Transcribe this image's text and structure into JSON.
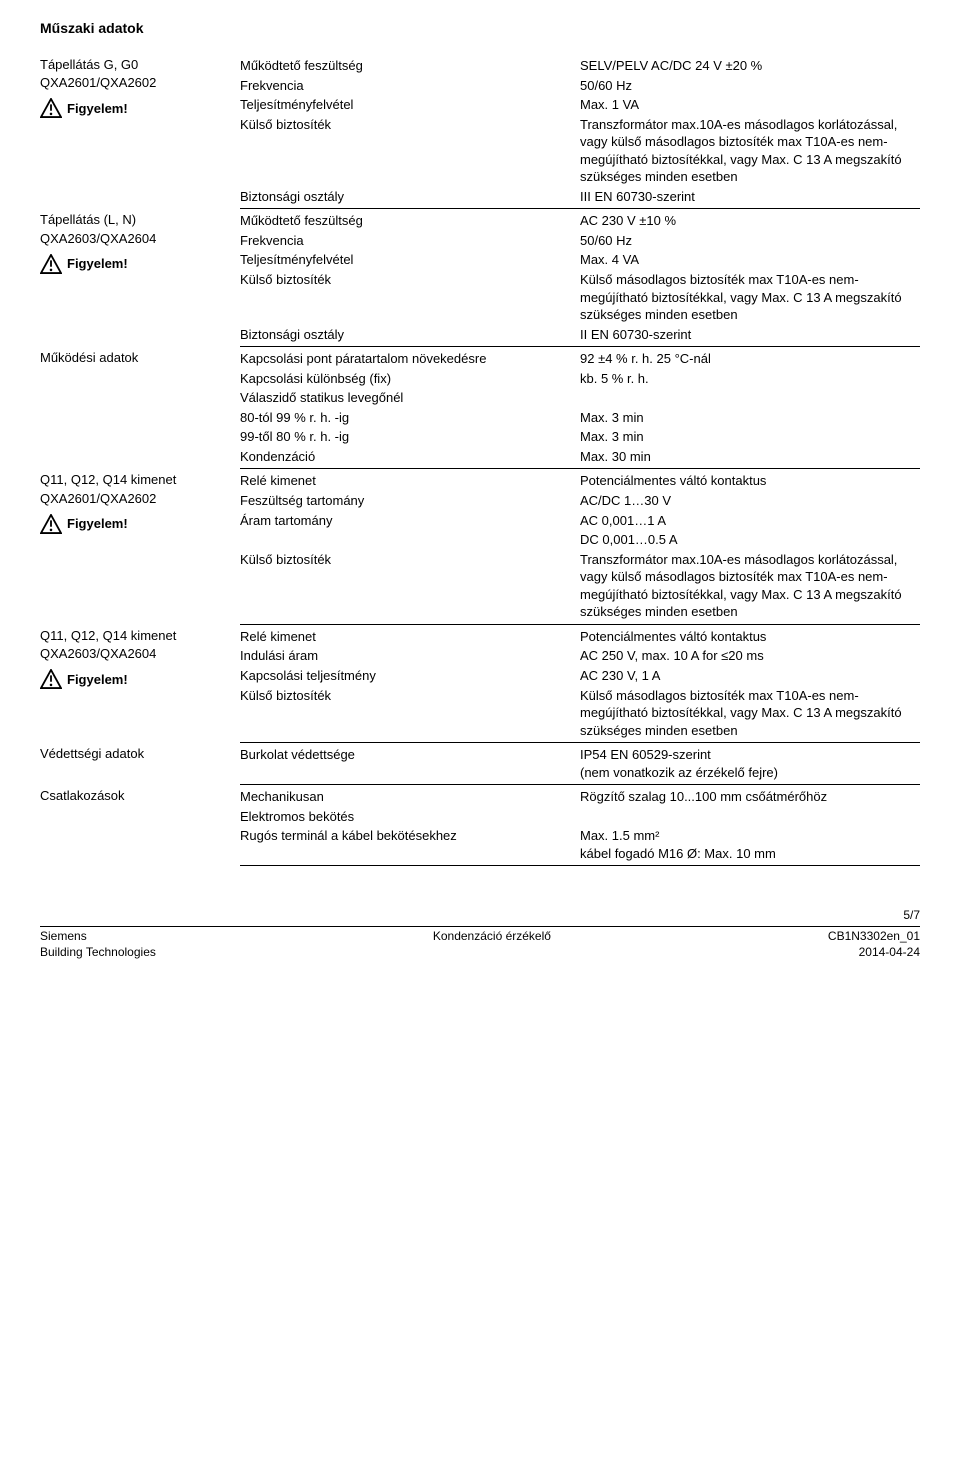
{
  "page_title": "Műszaki adatok",
  "sections": [
    {
      "category_lines": [
        "Tápellátás G, G0",
        "QXA2601/QXA2602"
      ],
      "warning_label": "Figyelem!",
      "rows": [
        {
          "param": "Működtető feszültség",
          "val": "SELV/PELV AC/DC 24 V ±20 %"
        },
        {
          "param": "Frekvencia",
          "val": "50/60 Hz"
        },
        {
          "param": "Teljesítményfelvétel",
          "val": "Max. 1 VA"
        },
        {
          "param": "Külső biztosíték",
          "val": "Transzformátor max.10A-es másodlagos korlátozással, vagy külső másodlagos biztosíték max T10A-es nem-megújítható biztosítékkal, vagy Max. C 13 A megszakító szükséges minden esetben"
        },
        {
          "param": "Biztonsági osztály",
          "val": "III EN 60730-szerint"
        }
      ]
    },
    {
      "category_lines": [
        "Tápellátás (L, N)",
        "QXA2603/QXA2604"
      ],
      "warning_label": "Figyelem!",
      "rows": [
        {
          "param": "Működtető feszültség",
          "val": "AC 230 V ±10 %"
        },
        {
          "param": "Frekvencia",
          "val": "50/60 Hz"
        },
        {
          "param": "Teljesítményfelvétel",
          "val": "Max. 4 VA"
        },
        {
          "param": "Külső biztosíték",
          "val": "Külső másodlagos biztosíték max T10A-es nem-megújítható biztosítékkal, vagy Max. C 13 A megszakító szükséges minden esetben"
        },
        {
          "param": "Biztonsági osztály",
          "val": "II EN 60730-szerint"
        }
      ]
    },
    {
      "category_lines": [
        "Működési adatok"
      ],
      "rows": [
        {
          "param": "Kapcsolási pont páratartalom növekedésre",
          "val": "92 ±4 % r. h. 25 °C-nál"
        },
        {
          "param": "Kapcsolási különbség (fix)",
          "val": "kb. 5 % r. h."
        },
        {
          "param": "Válaszidő statikus levegőnél",
          "val": ""
        },
        {
          "param": "80-tól 99 % r. h. -ig",
          "val": "Max. 3 min",
          "indent": true
        },
        {
          "param": "99-től 80 % r. h. -ig",
          "val": "Max. 3 min",
          "indent": true
        },
        {
          "param": "Kondenzáció",
          "val": "Max. 30 min"
        }
      ]
    },
    {
      "category_lines": [
        "Q11, Q12, Q14 kimenet",
        "QXA2601/QXA2602"
      ],
      "warning_label": "Figyelem!",
      "rows": [
        {
          "param": "Relé kimenet",
          "val": "Potenciálmentes váltó kontaktus"
        },
        {
          "param": "Feszültség tartomány",
          "val": "AC/DC   1…30 V",
          "indent": true
        },
        {
          "param": "Áram tartomány",
          "val": "AC 0,001…1 A",
          "indent": true
        },
        {
          "param": "",
          "val": "DC 0,001…0.5 A"
        },
        {
          "param": "Külső biztosíték",
          "val": "Transzformátor max.10A-es másodlagos korlátozással, vagy külső másodlagos biztosíték max T10A-es nem-megújítható biztosítékkal, vagy Max. C 13 A megszakító szükséges minden esetben"
        }
      ]
    },
    {
      "category_lines": [
        "Q11, Q12, Q14 kimenet",
        "QXA2603/QXA2604"
      ],
      "warning_label": "Figyelem!",
      "rows": [
        {
          "param": "Relé kimenet",
          "val": "Potenciálmentes váltó kontaktus"
        },
        {
          "param": "Indulási áram",
          "val": "AC  250 V, max. 10 A for ≤20 ms",
          "indent": true
        },
        {
          "param": "Kapcsolási teljesítmény",
          "val": "AC 230 V, 1 A",
          "indent": true
        },
        {
          "param": "Külső biztosíték",
          "val": "Külső másodlagos biztosíték max T10A-es nem-megújítható biztosítékkal, vagy Max. C 13 A megszakító szükséges minden esetben"
        }
      ]
    },
    {
      "category_lines": [
        "Védettségi adatok"
      ],
      "rows": [
        {
          "param": "Burkolat védettsége",
          "val": "IP54 EN 60529-szerint\n(nem vonatkozik az érzékelő fejre)"
        }
      ]
    },
    {
      "category_lines": [
        "Csatlakozások"
      ],
      "rows": [
        {
          "param": "Mechanikusan",
          "val": "Rögzítő szalag 10...100 mm csőátmérőhöz"
        },
        {
          "param": "Elektromos bekötés",
          "val": ""
        },
        {
          "param": "Rugós terminál a kábel bekötésekhez",
          "val": "Max. 1.5 mm²\nkábel fogadó M16 Ø: Max. 10 mm",
          "indent": true
        }
      ]
    }
  ],
  "footer": {
    "page_num": "5/7",
    "left1": "Siemens",
    "left2": "Building Technologies",
    "center": "Kondenzáció érzékelő",
    "right1": "CB1N3302en_01",
    "right2": "2014-04-24"
  }
}
